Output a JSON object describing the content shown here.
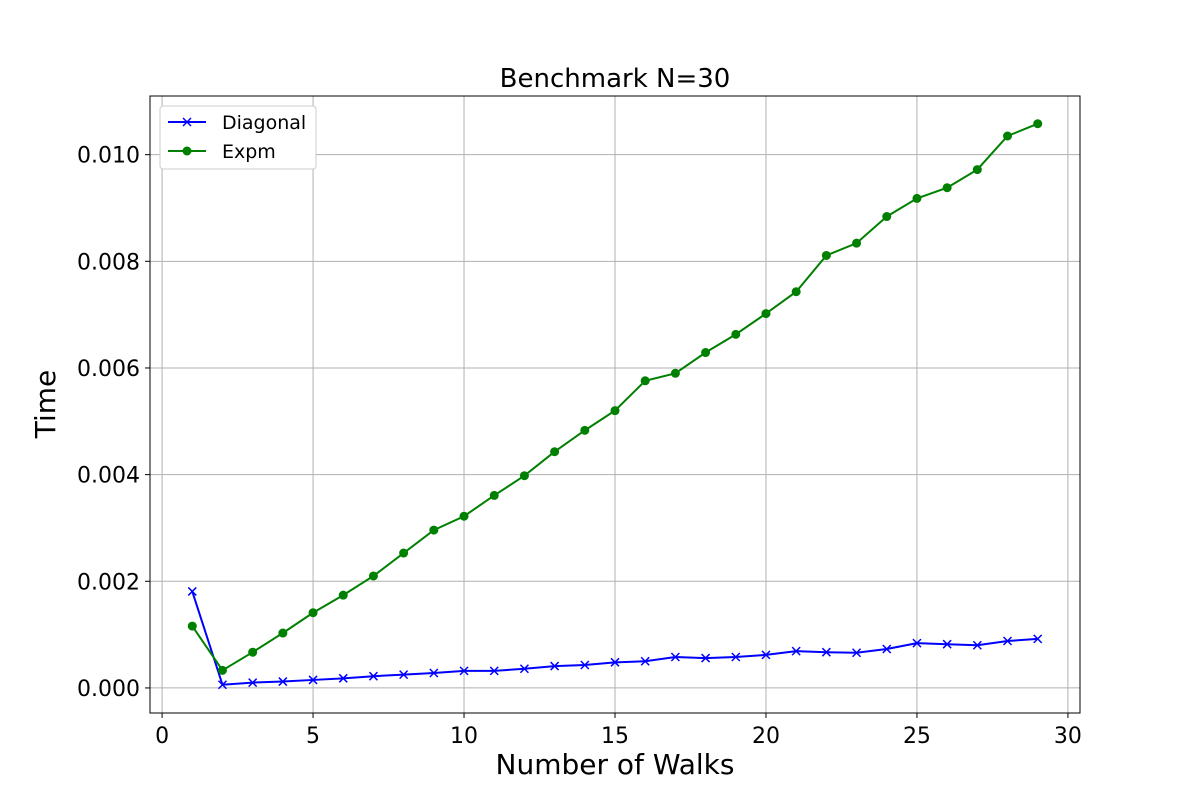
{
  "chart_data": {
    "type": "line",
    "title": "Benchmark N=30",
    "xlabel": "Number of Walks",
    "ylabel": "Time",
    "xlim": [
      -0.4,
      30.4
    ],
    "ylim": [
      -0.00047,
      0.0111
    ],
    "xticks": [
      0,
      5,
      10,
      15,
      20,
      25,
      30
    ],
    "xtick_labels": [
      "0",
      "5",
      "10",
      "15",
      "20",
      "25",
      "30"
    ],
    "yticks": [
      0.0,
      0.002,
      0.004,
      0.006,
      0.008,
      0.01
    ],
    "ytick_labels": [
      "0.000",
      "0.002",
      "0.004",
      "0.006",
      "0.008",
      "0.010"
    ],
    "grid": true,
    "legend_position": "top-left",
    "x": [
      1,
      2,
      3,
      4,
      5,
      6,
      7,
      8,
      9,
      10,
      11,
      12,
      13,
      14,
      15,
      16,
      17,
      18,
      19,
      20,
      21,
      22,
      23,
      24,
      25,
      26,
      27,
      28,
      29
    ],
    "series": [
      {
        "name": "Diagonal",
        "color": "#0000ff",
        "marker": "x",
        "values": [
          0.00181,
          6e-05,
          0.0001,
          0.00012,
          0.00015,
          0.00018,
          0.00022,
          0.00025,
          0.00028,
          0.00032,
          0.00032,
          0.00036,
          0.00041,
          0.00043,
          0.00048,
          0.0005,
          0.00058,
          0.00056,
          0.00058,
          0.00062,
          0.00069,
          0.00067,
          0.00066,
          0.00073,
          0.00084,
          0.00082,
          0.0008,
          0.00088,
          0.00092
        ]
      },
      {
        "name": "Expm",
        "color": "#008000",
        "marker": "o",
        "values": [
          0.00116,
          0.00033,
          0.00067,
          0.00103,
          0.00141,
          0.00174,
          0.0021,
          0.00253,
          0.00296,
          0.00322,
          0.00361,
          0.00398,
          0.00443,
          0.00483,
          0.0052,
          0.00576,
          0.0059,
          0.00629,
          0.00663,
          0.00702,
          0.00743,
          0.00811,
          0.00834,
          0.00884,
          0.00918,
          0.00938,
          0.00972,
          0.01035,
          0.01058
        ]
      }
    ]
  }
}
